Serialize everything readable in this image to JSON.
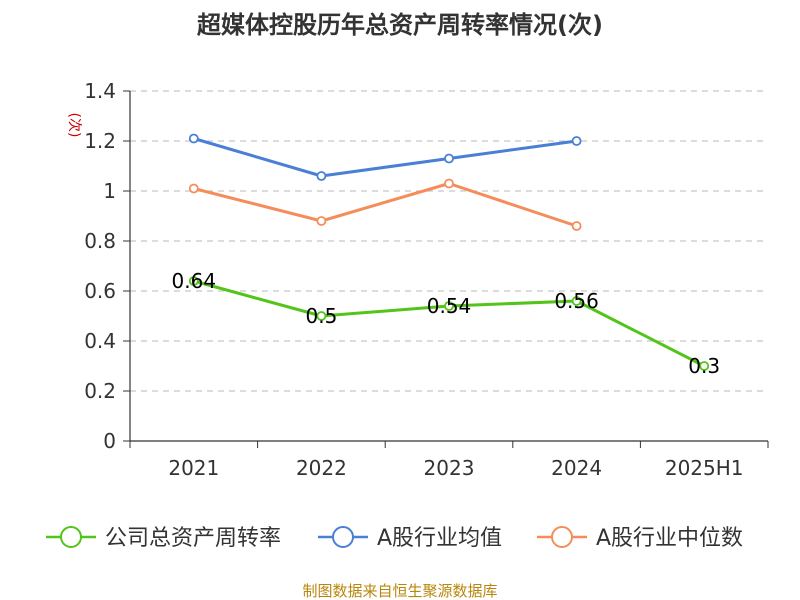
{
  "chart_data": {
    "type": "line",
    "title": "超媒体控股历年总资产周转率情况(次)",
    "ylabel": "(次)",
    "xlabel": "",
    "categories": [
      "2021",
      "2022",
      "2023",
      "2024",
      "2025H1"
    ],
    "ylim": [
      0,
      1.4
    ],
    "yticks": [
      "0",
      "0.2",
      "0.4",
      "0.6",
      "0.8",
      "1",
      "1.2",
      "1.4"
    ],
    "grid": true,
    "legend_position": "bottom",
    "series": [
      {
        "name": "公司总资产周转率",
        "color": "#52c41a",
        "values": [
          0.64,
          0.5,
          0.54,
          0.56,
          0.3
        ],
        "labels": [
          "0.64",
          "0.5",
          "0.54",
          "0.56",
          "0.3"
        ]
      },
      {
        "name": "A股行业均值",
        "color": "#4a7fd6",
        "values": [
          1.21,
          1.06,
          1.13,
          1.2,
          null
        ]
      },
      {
        "name": "A股行业中位数",
        "color": "#f58d5b",
        "values": [
          1.01,
          0.88,
          1.03,
          0.86,
          null
        ]
      }
    ],
    "source": "制图数据来自恒生聚源数据库"
  }
}
